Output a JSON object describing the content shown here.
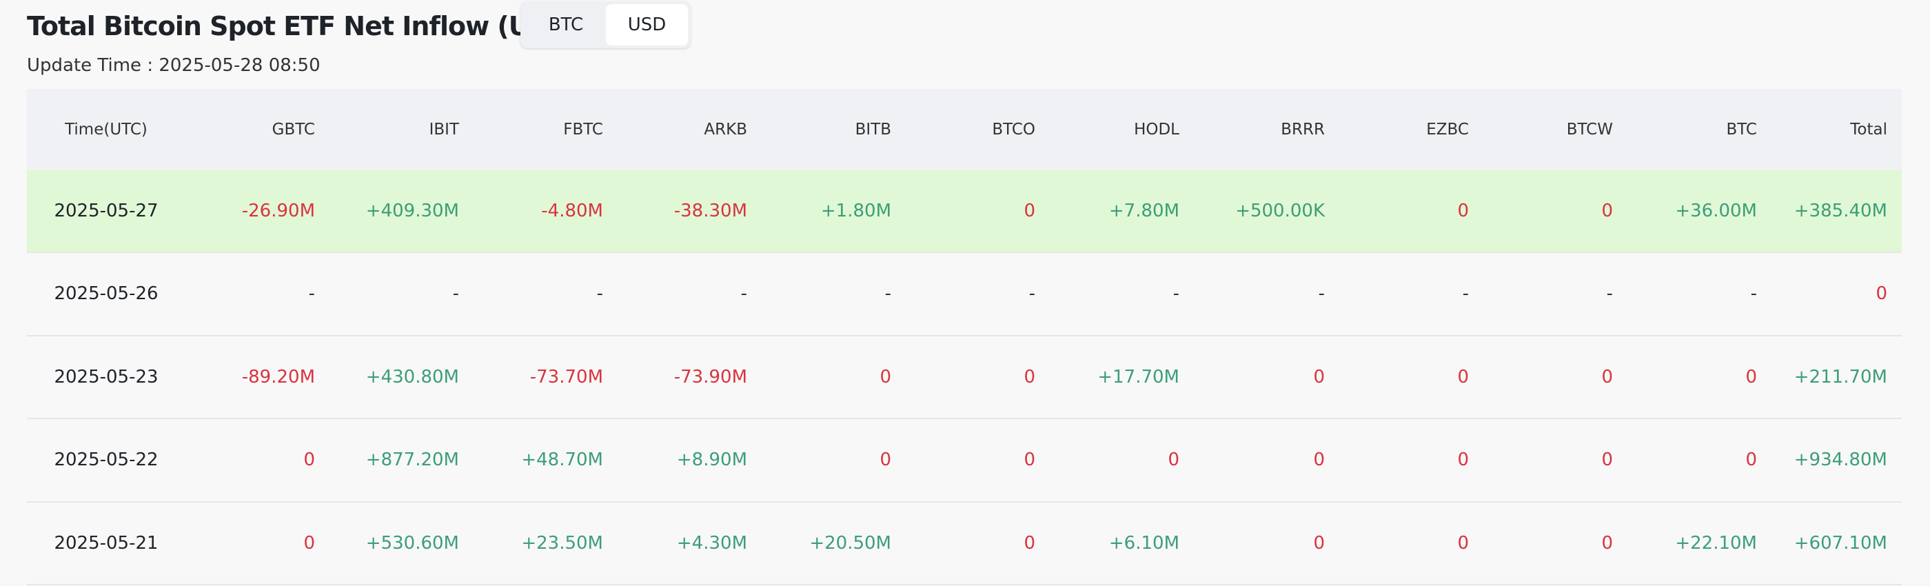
{
  "header": {
    "title": "Total Bitcoin Spot ETF Net Inflow (USD)",
    "update_time": "Update Time : 2025-05-28 08:50"
  },
  "toggle": {
    "options": [
      "BTC",
      "USD"
    ],
    "selected": 1
  },
  "table": {
    "columns": [
      "Time(UTC)",
      "GBTC",
      "IBIT",
      "FBTC",
      "ARKB",
      "BITB",
      "BTCO",
      "HODL",
      "BRRR",
      "EZBC",
      "BTCW",
      "BTC",
      "Total"
    ],
    "rows": [
      [
        "2025-05-27",
        "-26.90M",
        "+409.30M",
        "-4.80M",
        "-38.30M",
        "+1.80M",
        "0",
        "+7.80M",
        "+500.00K",
        "0",
        "0",
        "+36.00M",
        "+385.40M"
      ],
      [
        "2025-05-26",
        "-",
        "-",
        "-",
        "-",
        "-",
        "-",
        "-",
        "-",
        "-",
        "-",
        "-",
        "0"
      ],
      [
        "2025-05-23",
        "-89.20M",
        "+430.80M",
        "-73.70M",
        "-73.90M",
        "0",
        "0",
        "+17.70M",
        "0",
        "0",
        "0",
        "0",
        "+211.70M"
      ],
      [
        "2025-05-22",
        "0",
        "+877.20M",
        "+48.70M",
        "+8.90M",
        "0",
        "0",
        "0",
        "0",
        "0",
        "0",
        "0",
        "+934.80M"
      ],
      [
        "2025-05-21",
        "0",
        "+530.60M",
        "+23.50M",
        "+4.30M",
        "+20.50M",
        "0",
        "+6.10M",
        "0",
        "0",
        "0",
        "+22.10M",
        "+607.10M"
      ]
    ]
  }
}
